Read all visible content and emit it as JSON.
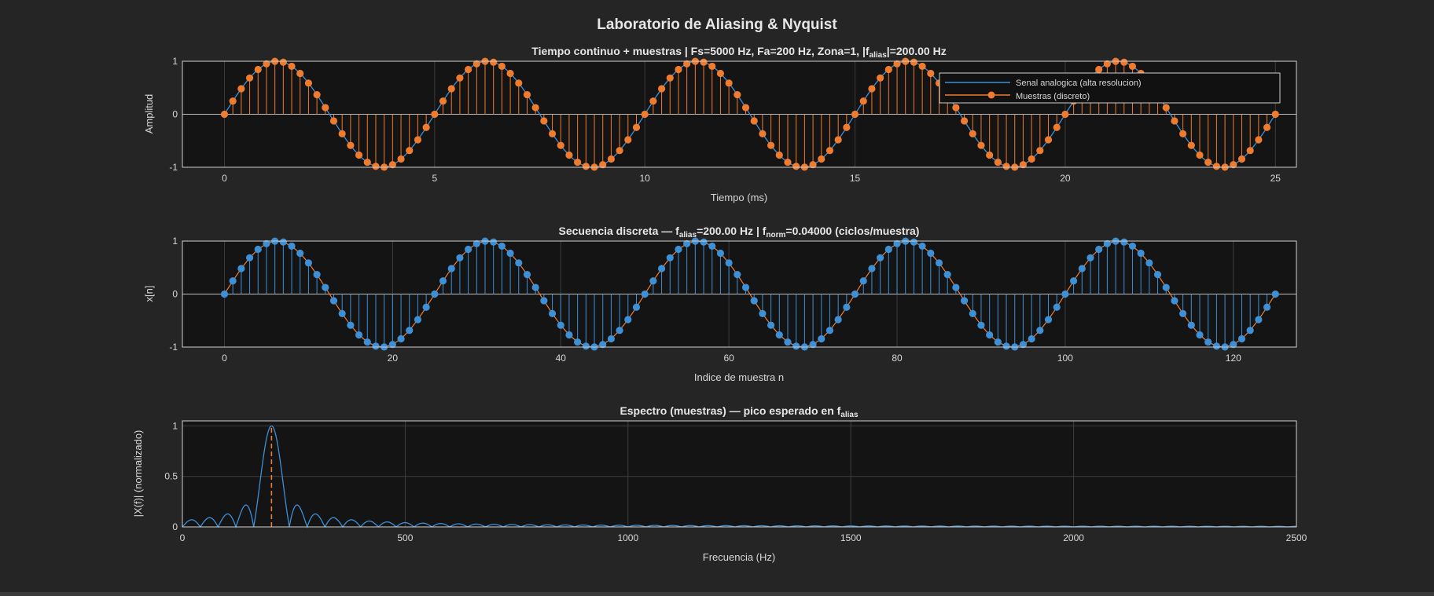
{
  "figure": {
    "title": "Laboratorio de Aliasing & Nyquist",
    "background": "#252525",
    "axes_background": "#141414",
    "grid_color": "#3c3c3c",
    "text_color": "#e6e6e6"
  },
  "colors": {
    "blue": "#3d8fd6",
    "orange": "#ef7b2e"
  },
  "chart_data": [
    {
      "type": "line",
      "title": {
        "prefix": "Tiempo  continuo  +  muestras     |     Fs=5000  Hz,  Fa=200  Hz,  Zona=1,  |f",
        "sub": "alias",
        "suffix": "|=200.00  Hz"
      },
      "xlabel": "Tiempo (ms)",
      "ylabel": "Amplitud",
      "xlim": [
        -1,
        25.5
      ],
      "ylim": [
        -1,
        1
      ],
      "xticks": [
        0,
        5,
        10,
        15,
        20,
        25
      ],
      "yticks": [
        -1,
        0,
        1
      ],
      "grid": true,
      "legend": {
        "position": "top-right",
        "entries": [
          "Senal analogica (alta resolucion)",
          "Muestras (discreto)"
        ]
      },
      "series": [
        {
          "name": "Senal analogica (alta resolucion)",
          "kind": "continuous",
          "function": "sin",
          "frequency_hz": 200,
          "x_range": [
            0,
            25
          ],
          "color": "blue"
        },
        {
          "name": "Muestras (discreto)",
          "kind": "stem",
          "sample_rate_hz": 5000,
          "sample_count": 126,
          "color": "orange"
        }
      ]
    },
    {
      "type": "line",
      "title": {
        "prefix": "Secuencia  discreta  —  f",
        "sub": "alias",
        "mid": "=200.00  Hz   |   f",
        "sub2": "norm",
        "suffix": "=0.04000  (ciclos/muestra)"
      },
      "xlabel": "Indice de muestra n",
      "ylabel": "x[n]",
      "xlim": [
        -5,
        127.5
      ],
      "ylim": [
        -1,
        1
      ],
      "xticks": [
        0,
        20,
        40,
        60,
        80,
        100,
        120
      ],
      "yticks": [
        -1,
        0,
        1
      ],
      "grid": true,
      "series": [
        {
          "kind": "stem",
          "normalized_frequency": 0.04,
          "n_range": [
            0,
            125
          ],
          "color": "blue",
          "line_color": "orange"
        }
      ]
    },
    {
      "type": "line",
      "title": {
        "prefix": "Espectro  (muestras)  —  pico  esperado  en  f",
        "sub": "alias",
        "suffix": ""
      },
      "xlabel": "Frecuencia (Hz)",
      "ylabel": "|X(f)| (normalizado)",
      "xlim": [
        0,
        2500
      ],
      "ylim": [
        0,
        1.05
      ],
      "xticks": [
        0,
        500,
        1000,
        1500,
        2000,
        2500
      ],
      "yticks": [
        0,
        0.5,
        1
      ],
      "grid": true,
      "series": [
        {
          "kind": "spectrum",
          "peak_hz": 200,
          "main_lobe_width_hz": 40,
          "color": "blue"
        },
        {
          "kind": "vline",
          "x": 200,
          "style": "dashed",
          "color": "orange"
        }
      ]
    }
  ]
}
